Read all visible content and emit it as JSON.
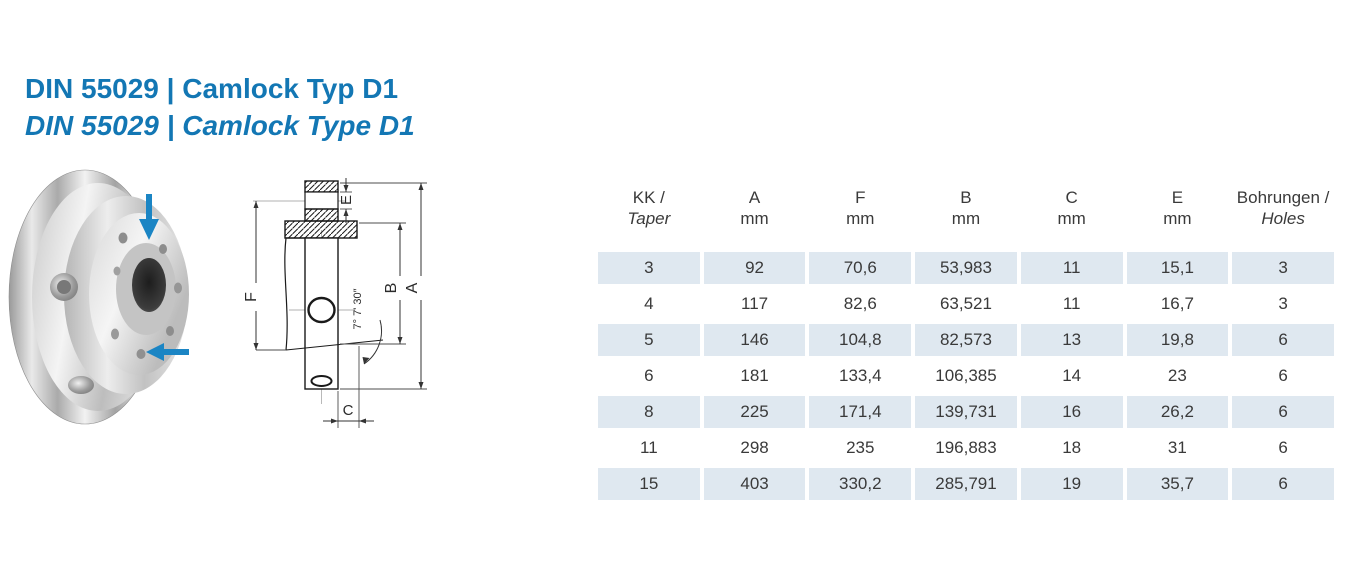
{
  "header": {
    "title_de": "DIN 55029 | Camlock Typ D1",
    "title_en": "DIN 55029 | Camlock Type D1",
    "title_color": "#1377b4"
  },
  "figure": {
    "description": "camlock chuck adapter plate photo",
    "arrow_color": "#1b85c4"
  },
  "drawing": {
    "labels": {
      "a": "A",
      "b": "B",
      "c": "C",
      "e": "E",
      "f": "F",
      "angle": "7° 7' 30″"
    }
  },
  "table": {
    "row_shade_color": "#dfe8f0",
    "text_color": "#3a3a3a",
    "columns": [
      {
        "line1": "KK /",
        "line2": "Taper",
        "line2_italic": true
      },
      {
        "line1": "A",
        "line2": "mm",
        "line2_italic": false
      },
      {
        "line1": "F",
        "line2": "mm",
        "line2_italic": false
      },
      {
        "line1": "B",
        "line2": "mm",
        "line2_italic": false
      },
      {
        "line1": "C",
        "line2": "mm",
        "line2_italic": false
      },
      {
        "line1": "E",
        "line2": "mm",
        "line2_italic": false
      },
      {
        "line1": "Bohrungen /",
        "line2": "Holes",
        "line2_italic": true
      }
    ],
    "rows": [
      {
        "shaded": true,
        "cells": [
          "3",
          "92",
          "70,6",
          "53,983",
          "11",
          "15,1",
          "3"
        ]
      },
      {
        "shaded": false,
        "cells": [
          "4",
          "117",
          "82,6",
          "63,521",
          "11",
          "16,7",
          "3"
        ]
      },
      {
        "shaded": true,
        "cells": [
          "5",
          "146",
          "104,8",
          "82,573",
          "13",
          "19,8",
          "6"
        ]
      },
      {
        "shaded": false,
        "cells": [
          "6",
          "181",
          "133,4",
          "106,385",
          "14",
          "23",
          "6"
        ]
      },
      {
        "shaded": true,
        "cells": [
          "8",
          "225",
          "171,4",
          "139,731",
          "16",
          "26,2",
          "6"
        ]
      },
      {
        "shaded": false,
        "cells": [
          "11",
          "298",
          "235",
          "196,883",
          "18",
          "31",
          "6"
        ]
      },
      {
        "shaded": true,
        "cells": [
          "15",
          "403",
          "330,2",
          "285,791",
          "19",
          "35,7",
          "6"
        ]
      }
    ]
  }
}
